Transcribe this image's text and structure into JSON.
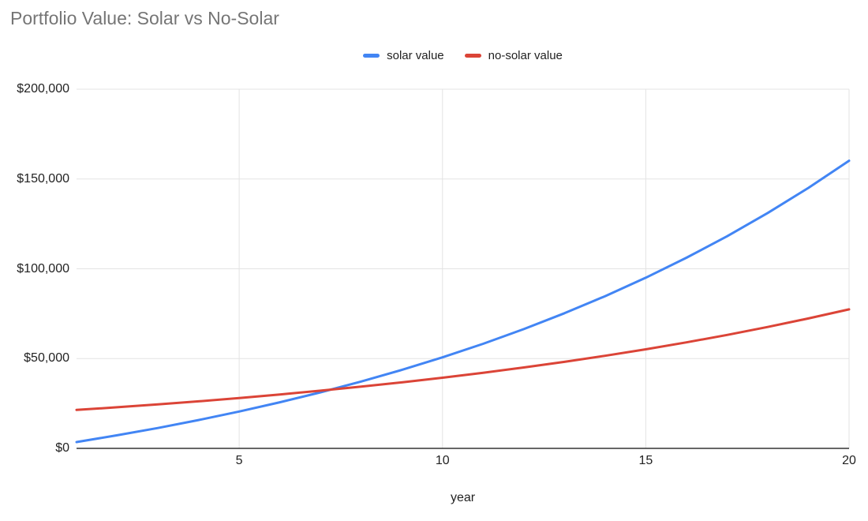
{
  "chart_data": {
    "type": "line",
    "title": "Portfolio Value: Solar vs No-Solar",
    "xlabel": "year",
    "ylabel": "",
    "xlim": [
      1,
      20
    ],
    "ylim": [
      0,
      200000
    ],
    "grid": true,
    "legend_position": "top-center",
    "x": [
      1,
      2,
      3,
      4,
      5,
      6,
      7,
      8,
      9,
      10,
      11,
      12,
      13,
      14,
      15,
      16,
      17,
      18,
      19,
      20
    ],
    "x_ticks": [
      {
        "value": 5,
        "label": "5"
      },
      {
        "value": 10,
        "label": "10"
      },
      {
        "value": 15,
        "label": "15"
      },
      {
        "value": 20,
        "label": "20"
      }
    ],
    "y_ticks": [
      {
        "value": 0,
        "label": "$0"
      },
      {
        "value": 50000,
        "label": "$50,000"
      },
      {
        "value": 100000,
        "label": "$100,000"
      },
      {
        "value": 150000,
        "label": "$150,000"
      },
      {
        "value": 200000,
        "label": "$200,000"
      }
    ],
    "series": [
      {
        "name": "solar value",
        "color": "#4285f4",
        "values": [
          3500,
          7280,
          11362,
          15771,
          20533,
          25676,
          31230,
          37228,
          43706,
          50703,
          58259,
          66420,
          75233,
          84752,
          95032,
          106135,
          118126,
          131076,
          145062,
          160167
        ]
      },
      {
        "name": "no-solar value",
        "color": "#db4437",
        "values": [
          21400,
          22898,
          24501,
          26216,
          28051,
          30015,
          32116,
          34364,
          36769,
          39343,
          42097,
          45044,
          48197,
          51571,
          55181,
          59043,
          63176,
          67599,
          72331,
          77394
        ]
      }
    ]
  },
  "colors": {
    "title_text": "#757575",
    "tick_text": "#222222",
    "grid": "#e3e3e3",
    "axis": "#333333",
    "background": "#ffffff"
  }
}
